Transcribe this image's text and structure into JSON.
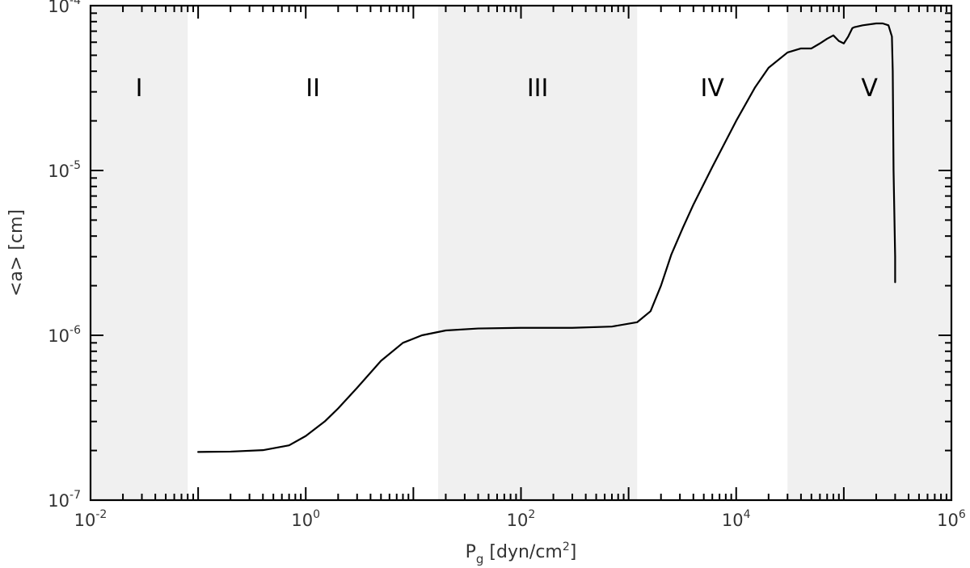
{
  "chart_data": {
    "type": "line",
    "xscale": "log",
    "yscale": "log",
    "xlim": [
      0.01,
      1000000
    ],
    "ylim": [
      1e-07,
      0.0001
    ],
    "xlabel": {
      "main": "P",
      "sub": "g",
      "rest": " [dyn/cm",
      "sup": "2",
      "end": "]"
    },
    "ylabel": "<a> [cm]",
    "x_ticks": [
      {
        "value": 0.01,
        "base": "10",
        "exp": "-2"
      },
      {
        "value": 1,
        "base": "10",
        "exp": "0"
      },
      {
        "value": 100,
        "base": "10",
        "exp": "2"
      },
      {
        "value": 10000,
        "base": "10",
        "exp": "4"
      },
      {
        "value": 1000000,
        "base": "10",
        "exp": "6"
      }
    ],
    "y_ticks": [
      {
        "value": 1e-07,
        "base": "10",
        "exp": "-7"
      },
      {
        "value": 1e-06,
        "base": "10",
        "exp": "-6"
      },
      {
        "value": 1e-05,
        "base": "10",
        "exp": "-5"
      },
      {
        "value": 0.0001,
        "base": "10",
        "exp": "-4"
      }
    ],
    "regions": [
      {
        "label": "I",
        "x_from": 0.01,
        "x_to": 0.08,
        "shaded": true
      },
      {
        "label": "II",
        "x_from": 0.08,
        "x_to": 17,
        "shaded": false
      },
      {
        "label": "III",
        "x_from": 17,
        "x_to": 1200,
        "shaded": true
      },
      {
        "label": "IV",
        "x_from": 1200,
        "x_to": 30000,
        "shaded": false
      },
      {
        "label": "V",
        "x_from": 30000,
        "x_to": 1000000,
        "shaded": true
      }
    ],
    "shade_color": "#f0f0f0",
    "line_color": "#000000",
    "series": [
      {
        "x": [
          0.1,
          0.2,
          0.4,
          0.7,
          1,
          1.5,
          2,
          3,
          5,
          8,
          12,
          20,
          40,
          100,
          300,
          700,
          1200,
          1600,
          2000,
          2500,
          3200,
          4000,
          6000,
          10000,
          15000,
          20000,
          30000,
          40000,
          50000,
          60000,
          70000,
          80000,
          90000,
          100000,
          110000,
          120000,
          125000,
          150000,
          200000,
          230000,
          260000,
          280000,
          285000,
          290000,
          300000,
          300000
        ],
        "y": [
          1.96e-07,
          1.97e-07,
          2.01e-07,
          2.15e-07,
          2.45e-07,
          3e-07,
          3.6e-07,
          4.8e-07,
          7e-07,
          9e-07,
          1e-06,
          1.07e-06,
          1.1e-06,
          1.11e-06,
          1.11e-06,
          1.13e-06,
          1.2e-06,
          1.4e-06,
          2e-06,
          3.1e-06,
          4.5e-06,
          6.2e-06,
          1.05e-05,
          2e-05,
          3.2e-05,
          4.2e-05,
          5.2e-05,
          5.5e-05,
          5.5e-05,
          5.9e-05,
          6.3e-05,
          6.6e-05,
          6.1e-05,
          5.9e-05,
          6.5e-05,
          7.3e-05,
          7.4e-05,
          7.6e-05,
          7.8e-05,
          7.8e-05,
          7.6e-05,
          6.5e-05,
          4e-05,
          1e-05,
          3e-06,
          2.1e-06
        ]
      }
    ]
  }
}
